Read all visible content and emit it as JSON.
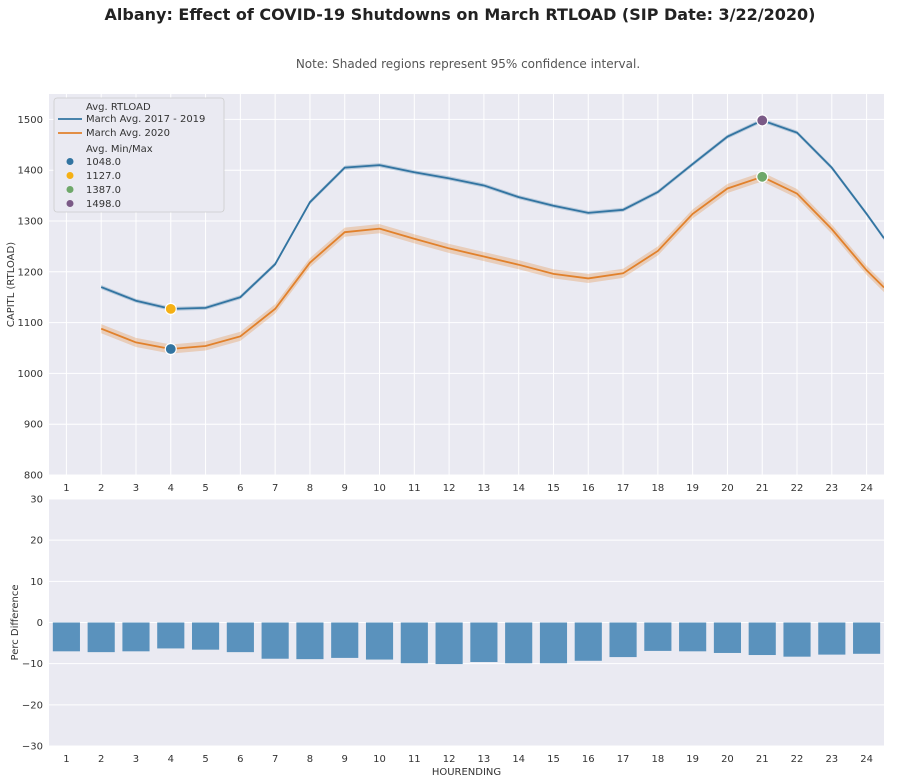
{
  "title": "Albany: Effect of COVID-19 Shutdowns on March RTLOAD (SIP Date: 3/22/2020)",
  "note": "Note: Shaded regions represent 95% confidence interval.",
  "colors": {
    "background": "#eaeaf2",
    "grid": "#ffffff",
    "series_2017_2019": "#3274a1",
    "series_2020": "#e1812c",
    "bars": "#5a92bd",
    "marker_1048": "#3274a1",
    "marker_1127": "#f5b014",
    "marker_1387": "#6fa86a",
    "marker_1498": "#7b5a87"
  },
  "chart_data": [
    {
      "type": "line",
      "ylabel": "CAPITL (RTLOAD)",
      "xlabel": "",
      "ylim": [
        800,
        1550
      ],
      "yticks": [
        800,
        900,
        1000,
        1100,
        1200,
        1300,
        1400,
        1500
      ],
      "x": [
        1,
        2,
        3,
        4,
        5,
        6,
        7,
        8,
        9,
        10,
        11,
        12,
        13,
        14,
        15,
        16,
        17,
        18,
        19,
        20,
        21,
        22,
        23,
        24
      ],
      "grid": true,
      "legend_position": "top-left",
      "legend_title_lines": "Avg. RTLOAD",
      "legend_title_markers": "Avg. Min/Max",
      "series": [
        {
          "name": "March Avg. 2017 - 2019",
          "x": [
            2,
            3,
            4,
            5,
            6,
            7,
            8,
            9,
            10,
            11,
            12,
            13,
            14,
            15,
            16,
            17,
            18,
            19,
            20,
            21,
            22,
            23,
            24,
            24.5
          ],
          "values": [
            1170,
            1143,
            1127,
            1129,
            1150,
            1215,
            1337,
            1405,
            1410,
            1396,
            1384,
            1370,
            1347,
            1330,
            1316,
            1322,
            1357,
            1412,
            1466,
            1498,
            1474,
            1405,
            1314,
            1266
          ],
          "ci": 4
        },
        {
          "name": "March Avg. 2020",
          "x": [
            2,
            3,
            4,
            5,
            6,
            7,
            8,
            9,
            10,
            11,
            12,
            13,
            14,
            15,
            16,
            17,
            18,
            19,
            20,
            21,
            22,
            23,
            24,
            24.5
          ],
          "values": [
            1088,
            1061,
            1048,
            1054,
            1073,
            1127,
            1218,
            1278,
            1285,
            1265,
            1246,
            1230,
            1214,
            1196,
            1187,
            1197,
            1241,
            1314,
            1364,
            1387,
            1354,
            1284,
            1203,
            1169
          ],
          "ci": 9
        }
      ],
      "markers": [
        {
          "label": "1048.0",
          "x": 4,
          "y": 1048
        },
        {
          "label": "1127.0",
          "x": 4,
          "y": 1127
        },
        {
          "label": "1387.0",
          "x": 21,
          "y": 1387
        },
        {
          "label": "1498.0",
          "x": 21,
          "y": 1498
        }
      ]
    },
    {
      "type": "bar",
      "ylabel": "Perc Difference",
      "xlabel": "HOURENDING",
      "ylim": [
        -30,
        30
      ],
      "yticks": [
        -30,
        -20,
        -10,
        0,
        10,
        20,
        30
      ],
      "grid": true,
      "categories": [
        "1",
        "2",
        "3",
        "4",
        "5",
        "6",
        "7",
        "8",
        "9",
        "10",
        "11",
        "12",
        "13",
        "14",
        "15",
        "16",
        "17",
        "18",
        "19",
        "20",
        "21",
        "22",
        "23",
        "24"
      ],
      "values": [
        -7.0,
        -7.2,
        -7.0,
        -6.3,
        -6.6,
        -7.2,
        -8.8,
        -8.9,
        -8.6,
        -9.0,
        -9.9,
        -10.1,
        -9.6,
        -9.9,
        -9.9,
        -9.3,
        -8.4,
        -6.9,
        -7.0,
        -7.4,
        -7.9,
        -8.3,
        -7.8,
        -7.6
      ]
    }
  ]
}
